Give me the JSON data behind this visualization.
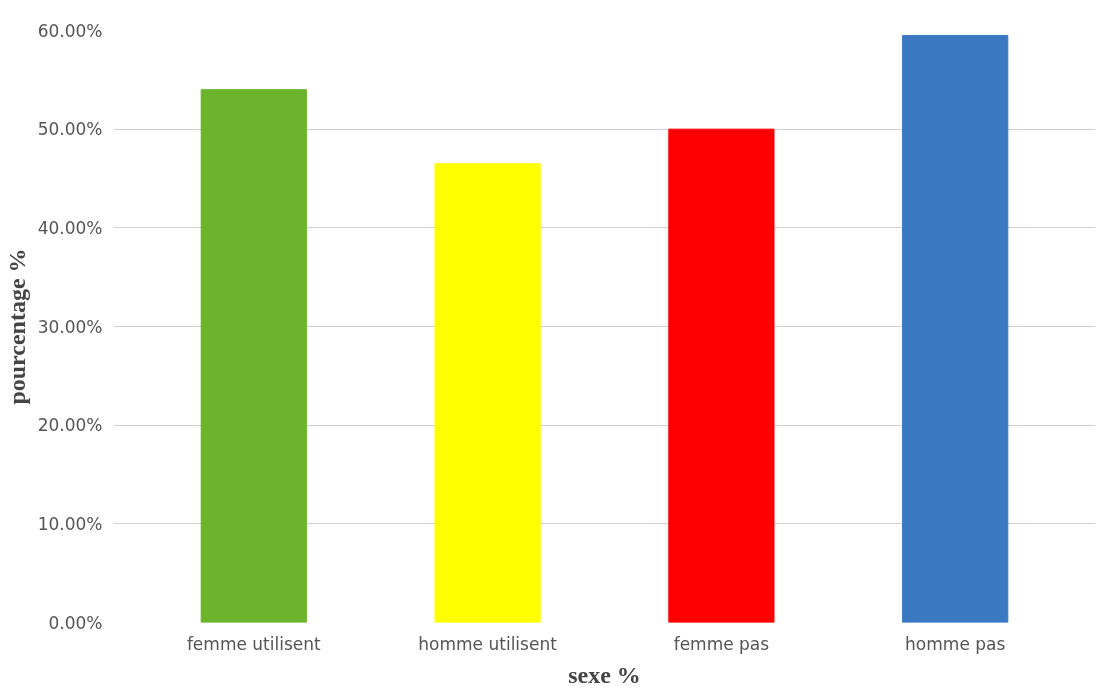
{
  "chart_data": {
    "type": "bar",
    "xlabel": "sexe %",
    "ylabel": "pourcentage %",
    "categories": [
      "femme utilisent",
      "homme utilisent",
      "femme pas",
      "homme pas"
    ],
    "values": [
      54,
      46.5,
      50,
      59.5
    ],
    "colors": [
      "#6cb42c",
      "#ffff00",
      "#ff0000",
      "#3a78c2"
    ],
    "ylim": [
      0,
      60
    ],
    "yticks": [
      {
        "value": 0,
        "label": "0.00%"
      },
      {
        "value": 10,
        "label": "10.00%"
      },
      {
        "value": 20,
        "label": "20.00%"
      },
      {
        "value": 30,
        "label": "30.00%"
      },
      {
        "value": 40,
        "label": "40.00%"
      },
      {
        "value": 50,
        "label": "50.00%"
      },
      {
        "value": 60,
        "label": "60.00%"
      }
    ],
    "grid": "y"
  }
}
